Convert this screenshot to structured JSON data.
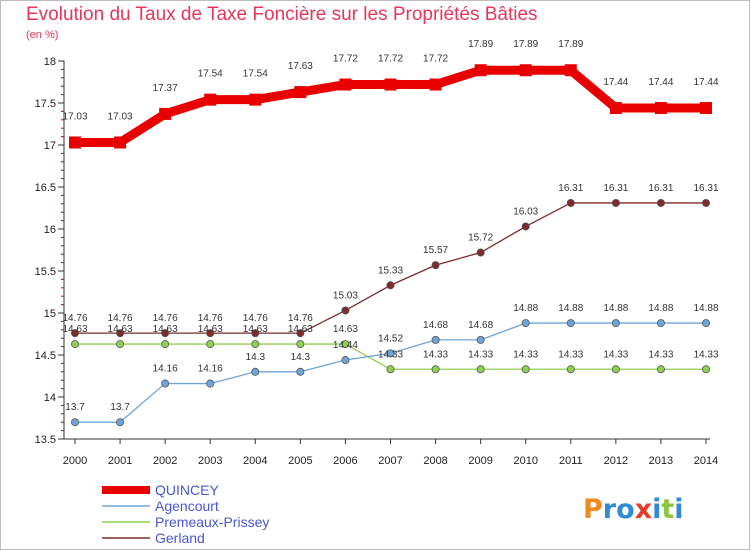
{
  "chart_data": {
    "type": "line",
    "title": "Evolution du Taux de Taxe Foncière sur les Propriétés Bâties",
    "unit": "(en %)",
    "xlabel": "",
    "ylabel": "",
    "ylim": [
      13.5,
      18
    ],
    "y_ticks": [
      13.5,
      14,
      14.5,
      15,
      15.5,
      16,
      16.5,
      17,
      17.5,
      18
    ],
    "y_tick_labels": [
      "13.5",
      "14",
      "14.5",
      "15",
      "15.5",
      "16",
      "16.5",
      "17",
      "17.5",
      "18"
    ],
    "categories": [
      "2000",
      "2001",
      "2002",
      "2003",
      "2004",
      "2005",
      "2006",
      "2007",
      "2008",
      "2009",
      "2010",
      "2011",
      "2012",
      "2013",
      "2014"
    ],
    "grid": false,
    "legend_position": "bottom-left",
    "series": [
      {
        "name": "QUINCEY",
        "color": "#e80000",
        "values": [
          17.03,
          17.03,
          17.37,
          17.54,
          17.54,
          17.63,
          17.72,
          17.72,
          17.72,
          17.89,
          17.89,
          17.89,
          17.44,
          17.44,
          17.44
        ],
        "labels": [
          "17.03",
          "17.03",
          "17.37",
          "17.54",
          "17.54",
          "17.63",
          "17.72",
          "17.72",
          "17.72",
          "17.89",
          "17.89",
          "17.89",
          "17.44",
          "17.44",
          "17.44"
        ]
      },
      {
        "name": "Agencourt",
        "color": "#6ea5d8",
        "values": [
          13.7,
          13.7,
          14.16,
          14.16,
          14.3,
          14.3,
          14.44,
          14.52,
          14.68,
          14.68,
          14.88,
          14.88,
          14.88,
          14.88,
          14.88
        ],
        "labels": [
          "13.7",
          "13.7",
          "14.16",
          "14.16",
          "14.3",
          "14.3",
          "14.44",
          "14.52",
          "14.68",
          "14.68",
          "14.88",
          "14.88",
          "14.88",
          "14.88",
          "14.88"
        ]
      },
      {
        "name": "Premeaux-Prissey",
        "color": "#8fd14f",
        "values": [
          14.63,
          14.63,
          14.63,
          14.63,
          14.63,
          14.63,
          14.63,
          14.33,
          14.33,
          14.33,
          14.33,
          14.33,
          14.33,
          14.33,
          14.33
        ],
        "labels": [
          "14.63",
          "14.63",
          "14.63",
          "14.63",
          "14.63",
          "14.63",
          "14.63",
          "14.33",
          "14.33",
          "14.33",
          "14.33",
          "14.33",
          "14.33",
          "14.33",
          "14.33"
        ]
      },
      {
        "name": "Gerland",
        "color": "#7d2b2b",
        "values": [
          14.76,
          14.76,
          14.76,
          14.76,
          14.76,
          14.76,
          15.03,
          15.33,
          15.57,
          15.72,
          16.03,
          16.31,
          16.31,
          16.31,
          16.31
        ],
        "labels": [
          "14.76",
          "14.76",
          "14.76",
          "14.76",
          "14.76",
          "14.76",
          "15.03",
          "15.33",
          "15.57",
          "15.72",
          "16.03",
          "16.31",
          "16.31",
          "16.31",
          "16.31"
        ]
      }
    ]
  },
  "logo": {
    "text": "Proxiti"
  }
}
